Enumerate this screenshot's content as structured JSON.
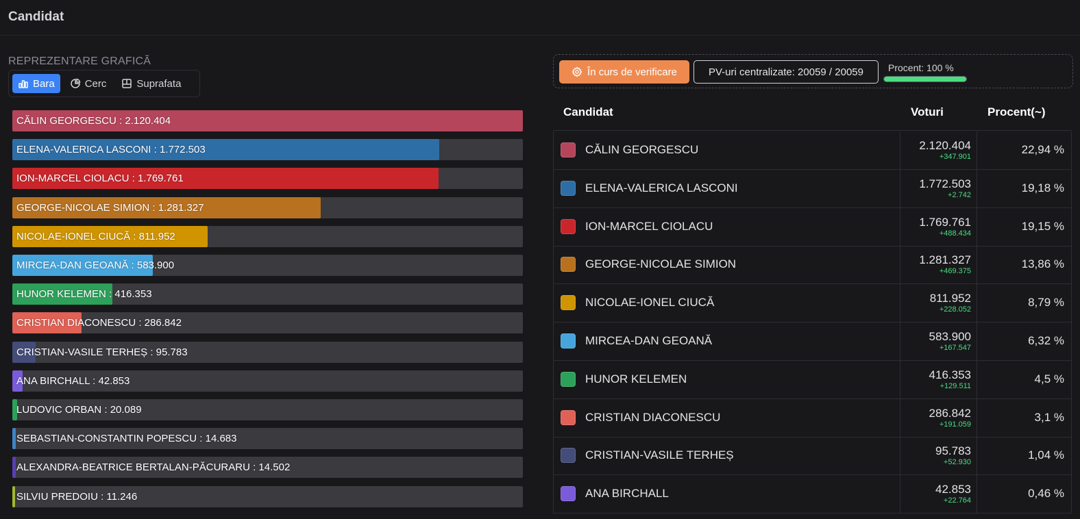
{
  "header": {
    "title": "Candidat"
  },
  "chart_section": {
    "label": "REPREZENTARE GRAFICĂ",
    "modes": [
      {
        "label": "Bara",
        "icon": "bar-chart-icon",
        "active": true
      },
      {
        "label": "Cerc",
        "icon": "pie-chart-icon",
        "active": false
      },
      {
        "label": "Suprafata",
        "icon": "area-chart-icon",
        "active": false
      }
    ]
  },
  "status": {
    "verify_label": "În curs de verificare",
    "pv_label": "PV-uri centralizate: 20059 / 20059",
    "progress_label": "Procent: 100 %",
    "progress_value": 100
  },
  "table": {
    "headers": {
      "candidate": "Candidat",
      "votes": "Voturi",
      "percent": "Procent(~)"
    }
  },
  "chart_data": {
    "type": "bar",
    "orientation": "horizontal",
    "max": 2120404,
    "items": [
      {
        "name": "CĂLIN GEORGESCU",
        "label": "CĂLIN GEORGESCU : 2.120.404",
        "value": 2120404,
        "votes": "2.120.404",
        "delta": "+347.901",
        "percent": "22,94 %",
        "color": "#b4455b"
      },
      {
        "name": "ELENA-VALERICA LASCONI",
        "label": "ELENA-VALERICA LASCONI : 1.772.503",
        "value": 1772503,
        "votes": "1.772.503",
        "delta": "+2.742",
        "percent": "19,18 %",
        "color": "#2e6ea6"
      },
      {
        "name": "ION-MARCEL CIOLACU",
        "label": "ION-MARCEL CIOLACU : 1.769.761",
        "value": 1769761,
        "votes": "1.769.761",
        "delta": "+488.434",
        "percent": "19,15 %",
        "color": "#c9262c"
      },
      {
        "name": "GEORGE-NICOLAE SIMION",
        "label": "GEORGE-NICOLAE SIMION : 1.281.327",
        "value": 1281327,
        "votes": "1.281.327",
        "delta": "+469.375",
        "percent": "13,86 %",
        "color": "#b8711f"
      },
      {
        "name": "NICOLAE-IONEL CIUCĂ",
        "label": "NICOLAE-IONEL CIUCĂ : 811.952",
        "value": 811952,
        "votes": "811.952",
        "delta": "+228.052",
        "percent": "8,79 %",
        "color": "#cf9400"
      },
      {
        "name": "MIRCEA-DAN GEOANĂ",
        "label": "MIRCEA-DAN GEOANĂ : 583.900",
        "value": 583900,
        "votes": "583.900",
        "delta": "+167.547",
        "percent": "6,32 %",
        "color": "#45a5dc"
      },
      {
        "name": "HUNOR KELEMEN",
        "label": "HUNOR KELEMEN : 416.353",
        "value": 416353,
        "votes": "416.353",
        "delta": "+129.511",
        "percent": "4,5 %",
        "color": "#2da05a"
      },
      {
        "name": "CRISTIAN DIACONESCU",
        "label": "CRISTIAN DIACONESCU : 286.842",
        "value": 286842,
        "votes": "286.842",
        "delta": "+191.059",
        "percent": "3,1 %",
        "color": "#e06155"
      },
      {
        "name": "CRISTIAN-VASILE TERHEȘ",
        "label": "CRISTIAN-VASILE TERHEȘ : 95.783",
        "value": 95783,
        "votes": "95.783",
        "delta": "+52.930",
        "percent": "1,04 %",
        "color": "#444c78"
      },
      {
        "name": "ANA BIRCHALL",
        "label": "ANA BIRCHALL : 42.853",
        "value": 42853,
        "votes": "42.853",
        "delta": "+22.764",
        "percent": "0,46 %",
        "color": "#7a5bd9"
      },
      {
        "name": "LUDOVIC ORBAN",
        "label": "LUDOVIC ORBAN : 20.089",
        "value": 20089,
        "color": "#2da05a"
      },
      {
        "name": "SEBASTIAN-CONSTANTIN POPESCU",
        "label": "SEBASTIAN-CONSTANTIN POPESCU : 14.683",
        "value": 14683,
        "color": "#3d85c6"
      },
      {
        "name": "ALEXANDRA-BEATRICE BERTALAN-PĂCURARU",
        "label": "ALEXANDRA-BEATRICE BERTALAN-PĂCURARU : 14.502",
        "value": 14502,
        "color": "#5a3fb0"
      },
      {
        "name": "SILVIU PREDOIU",
        "label": "SILVIU PREDOIU : 11.246",
        "value": 11246,
        "color": "#a3b82a"
      }
    ]
  }
}
